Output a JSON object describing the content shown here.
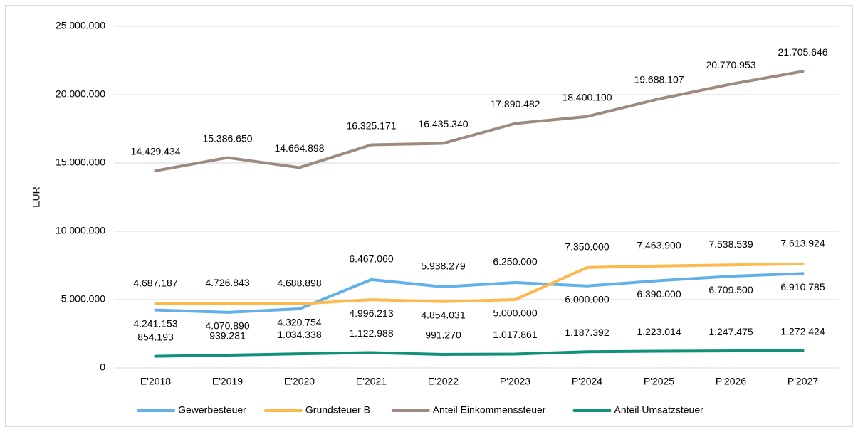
{
  "chart_data": {
    "type": "line",
    "y_label": "EUR",
    "categories": [
      "E'2018",
      "E'2019",
      "E'2020",
      "E'2021",
      "E'2022",
      "P'2023",
      "P'2024",
      "P'2025",
      "P'2026",
      "P'2027"
    ],
    "series": [
      {
        "name": "Gewerbesteuer",
        "color": "#62b0ea",
        "values": [
          4241153,
          4070890,
          4320754,
          6467060,
          5938279,
          6250000,
          6000000,
          6390000,
          6709500,
          6910785
        ],
        "value_labels": [
          "4.241.153",
          "4.070.890",
          "4.320.754",
          "6.467.060",
          "5.938.279",
          "6.250.000",
          "6.000.000",
          "6.390.000",
          "6.709.500",
          "6.910.785"
        ]
      },
      {
        "name": "Grundsteuer B",
        "color": "#fdb94e",
        "values": [
          4687187,
          4726843,
          4688898,
          4996213,
          4854031,
          5000000,
          7350000,
          7463900,
          7538539,
          7613924
        ],
        "value_labels": [
          "4.687.187",
          "4.726.843",
          "4.688.898",
          "4.996.213",
          "4.854.031",
          "5.000.000",
          "7.350.000",
          "7.463.900",
          "7.538.539",
          "7.613.924"
        ]
      },
      {
        "name": "Anteil Einkommenssteuer",
        "color": "#9e8a80",
        "values": [
          14429434,
          15386650,
          14664898,
          16325171,
          16435340,
          17890482,
          18400100,
          19688107,
          20770953,
          21705646
        ],
        "value_labels": [
          "14.429.434",
          "15.386.650",
          "14.664.898",
          "16.325.171",
          "16.435.340",
          "17.890.482",
          "18.400.100",
          "19.688.107",
          "20.770.953",
          "21.705.646"
        ]
      },
      {
        "name": "Anteil Umsatzsteuer",
        "color": "#10917b",
        "values": [
          854193,
          939281,
          1034338,
          1122988,
          991270,
          1017861,
          1187392,
          1223014,
          1247475,
          1272424
        ],
        "value_labels": [
          "854.193",
          "939.281",
          "1.034.338",
          "1.122.988",
          "991.270",
          "1.017.861",
          "1.187.392",
          "1.223.014",
          "1.247.475",
          "1.272.424"
        ]
      }
    ],
    "ylim": [
      0,
      25000000
    ],
    "yticks": [
      0,
      {
        "value": 5000000,
        "label": "5.000.000"
      },
      {
        "value": 10000000,
        "label": "10.000.000"
      },
      {
        "value": 15000000,
        "label": "15.000.000"
      },
      {
        "value": 20000000,
        "label": "20.000.000"
      },
      {
        "value": 25000000,
        "label": "25.000.000"
      }
    ],
    "grid": true,
    "legend": "bottom"
  }
}
